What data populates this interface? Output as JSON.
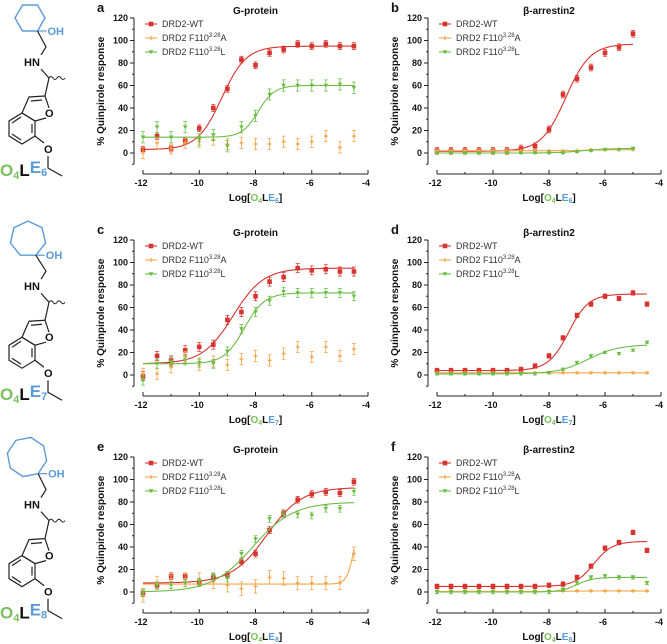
{
  "colors": {
    "wt": "#d8342f",
    "ala": "#f3a64a",
    "leu": "#6cbd45",
    "green_text": "#7cbf5c",
    "blue_text": "#5b9bd5",
    "ring": "#5b9bd5"
  },
  "legend": [
    {
      "key": "wt",
      "label": "DRD2-WT",
      "sup": "",
      "suffix": ""
    },
    {
      "key": "ala",
      "label": "DRD2 F110",
      "sup": "3.28",
      "suffix": "A"
    },
    {
      "key": "leu",
      "label": "DRD2 F110",
      "sup": "3.28",
      "suffix": "L"
    }
  ],
  "compounds": [
    {
      "ring": "cyclohexyl",
      "o": "O",
      "o_sub": "4",
      "l": "L",
      "e": "E",
      "e_sub": "6"
    },
    {
      "ring": "cycloheptyl",
      "o": "O",
      "o_sub": "4",
      "l": "L",
      "e": "E",
      "e_sub": "7"
    },
    {
      "ring": "cyclooctyl",
      "o": "O",
      "o_sub": "4",
      "l": "L",
      "e": "E",
      "e_sub": "8"
    }
  ],
  "atoms": {
    "oh": "OH",
    "hn": "HN",
    "o_furan": "O",
    "o_ether": "O"
  },
  "chart_data": [
    {
      "type": "scatter",
      "letter": "a",
      "title": "G-protein",
      "ylabel": "% Quinpirole response",
      "xlabel": {
        "prefix": "Log[",
        "o": "O",
        "o_sub": "4",
        "l": "L",
        "e": "E",
        "e_sub": "6",
        "suffix": "]"
      },
      "xlim": [
        -12,
        -4
      ],
      "ylim": [
        -10,
        120
      ],
      "xticks": [
        "-12",
        "-10",
        "-8",
        "-6",
        "-4"
      ],
      "yticks": [
        "0",
        "20",
        "40",
        "60",
        "80",
        "100",
        "120"
      ],
      "x": [
        -12,
        -11.5,
        -11,
        -10.5,
        -10,
        -9.5,
        -9,
        -8.5,
        -8,
        -7.5,
        -7,
        -6.5,
        -6,
        -5.5,
        -5,
        -4.5
      ],
      "series": [
        {
          "key": "wt",
          "name": "DRD2-WT",
          "values": [
            3,
            15,
            4,
            11,
            22,
            40,
            57,
            83,
            78,
            89,
            92,
            97,
            95,
            97,
            95,
            95
          ],
          "err": 3,
          "fit": {
            "bottom": 3,
            "top": 95,
            "logEC50": -9.2,
            "hill": 1
          }
        },
        {
          "key": "ala",
          "name": "DRD2 F110 3.28 A",
          "values": [
            0,
            9,
            4,
            9,
            10,
            12,
            8,
            9,
            8,
            8,
            10,
            8,
            10,
            15,
            5,
            15
          ],
          "err": 5,
          "fit": null
        },
        {
          "key": "leu",
          "name": "DRD2 F110 3.28 L",
          "values": [
            14,
            23,
            14,
            23,
            12,
            16,
            6,
            23,
            33,
            52,
            60,
            60,
            60,
            60,
            61,
            58
          ],
          "err": 5,
          "fit": {
            "bottom": 14,
            "top": 60,
            "logEC50": -7.9,
            "hill": 1.5
          }
        }
      ]
    },
    {
      "type": "scatter",
      "letter": "b",
      "title": "β-arrestin2",
      "ylabel": "% Quinpirole response",
      "xlabel": {
        "prefix": "Log[",
        "o": "O",
        "o_sub": "4",
        "l": "L",
        "e": "E",
        "e_sub": "6",
        "suffix": "]"
      },
      "xlim": [
        -12,
        -4
      ],
      "ylim": [
        -10,
        120
      ],
      "xticks": [
        "-12",
        "-10",
        "-8",
        "-6",
        "-4"
      ],
      "yticks": [
        "0",
        "20",
        "40",
        "60",
        "80",
        "100",
        "120"
      ],
      "x": [
        -12,
        -11.5,
        -11,
        -10.5,
        -10,
        -9.5,
        -9,
        -8.5,
        -8,
        -7.5,
        -7,
        -6.5,
        -6,
        -5.5,
        -5
      ],
      "series": [
        {
          "key": "wt",
          "name": "DRD2-WT",
          "values": [
            2,
            2,
            2,
            2,
            2,
            2,
            4,
            6,
            21,
            52,
            66,
            76,
            89,
            94,
            106
          ],
          "err": 3,
          "fit": {
            "bottom": 1.5,
            "top": 97,
            "logEC50": -7.4,
            "hill": 1
          }
        },
        {
          "key": "ala",
          "name": "DRD2 F110 3.28 A",
          "values": [
            2,
            2,
            2,
            2,
            2,
            2,
            2,
            2,
            2,
            2,
            2,
            3,
            3,
            3,
            3
          ],
          "err": 0.5,
          "fit": {
            "bottom": 2,
            "top": 3,
            "logEC50": -6.5,
            "hill": 1
          }
        },
        {
          "key": "leu",
          "name": "DRD2 F110 3.28 L",
          "values": [
            0,
            0,
            0,
            0,
            0,
            0,
            0,
            0,
            0,
            0,
            1,
            2,
            3,
            3,
            4
          ],
          "err": 0.5,
          "fit": {
            "bottom": 0,
            "top": 4,
            "logEC50": -6.8,
            "hill": 1
          }
        }
      ]
    },
    {
      "type": "scatter",
      "letter": "c",
      "title": "G-protein",
      "ylabel": "% Quinpirole response",
      "xlabel": {
        "prefix": "Log[",
        "o": "O",
        "o_sub": "4",
        "l": "L",
        "e": "E",
        "e_sub": "7",
        "suffix": "]"
      },
      "xlim": [
        -12,
        -4
      ],
      "ylim": [
        -10,
        120
      ],
      "xticks": [
        "-12",
        "-10",
        "-8",
        "-6",
        "-4"
      ],
      "yticks": [
        "0",
        "20",
        "40",
        "60",
        "80",
        "100",
        "120"
      ],
      "x": [
        -12,
        -11.5,
        -11,
        -10.5,
        -10,
        -9.5,
        -9,
        -8.5,
        -8,
        -7.5,
        -7,
        -6.5,
        -6,
        -5.5,
        -5,
        -4.5
      ],
      "series": [
        {
          "key": "wt",
          "name": "DRD2-WT",
          "values": [
            -1,
            17,
            13,
            22,
            25,
            27,
            49,
            56,
            70,
            83,
            87,
            95,
            93,
            94,
            92,
            92
          ],
          "err": 4,
          "fit": {
            "bottom": 10,
            "top": 95,
            "logEC50": -8.8,
            "hill": 0.8
          }
        },
        {
          "key": "ala",
          "name": "DRD2 F110 3.28 A",
          "values": [
            1,
            1,
            7,
            16,
            9,
            12,
            9,
            14,
            17,
            13,
            19,
            25,
            16,
            25,
            17,
            23
          ],
          "err": 5,
          "fit": null
        },
        {
          "key": "leu",
          "name": "DRD2 F110 3.28 L",
          "values": [
            -5,
            10,
            12,
            13,
            11,
            10,
            21,
            41,
            56,
            66,
            74,
            73,
            73,
            73,
            73,
            70
          ],
          "err": 4,
          "fit": {
            "bottom": 10,
            "top": 73,
            "logEC50": -8.4,
            "hill": 1.2
          }
        }
      ]
    },
    {
      "type": "scatter",
      "letter": "d",
      "title": "β-arrestin2",
      "ylabel": "% Quinpirole response",
      "xlabel": {
        "prefix": "Log[",
        "o": "O",
        "o_sub": "4",
        "l": "L",
        "e": "E",
        "e_sub": "7",
        "suffix": "]"
      },
      "xlim": [
        -12,
        -4
      ],
      "ylim": [
        -10,
        120
      ],
      "xticks": [
        "-12",
        "-10",
        "-8",
        "-6",
        "-4"
      ],
      "yticks": [
        "0",
        "20",
        "40",
        "60",
        "80",
        "100",
        "120"
      ],
      "x": [
        -12,
        -11.5,
        -11,
        -10.5,
        -10,
        -9.5,
        -9,
        -8.5,
        -8,
        -7.5,
        -7,
        -6.5,
        -6,
        -5.5,
        -5,
        -4.5
      ],
      "series": [
        {
          "key": "wt",
          "name": "DRD2-WT",
          "values": [
            4,
            4,
            4,
            4,
            4,
            4,
            5,
            8,
            17,
            33,
            53,
            63,
            70,
            68,
            73,
            63
          ],
          "err": 2,
          "fit": {
            "bottom": 4,
            "top": 72,
            "logEC50": -7.3,
            "hill": 1.2
          }
        },
        {
          "key": "ala",
          "name": "DRD2 F110 3.28 A",
          "values": [
            2,
            2,
            2,
            2,
            2,
            2,
            2,
            2,
            2,
            2,
            2,
            2,
            2,
            2,
            2,
            2
          ],
          "err": 0.5,
          "fit": {
            "bottom": 2,
            "top": 2,
            "logEC50": -7,
            "hill": 1
          }
        },
        {
          "key": "leu",
          "name": "DRD2 F110 3.28 L",
          "values": [
            1,
            1,
            1,
            1,
            1,
            1,
            1,
            1,
            2,
            5,
            11,
            17,
            20,
            19,
            22,
            29
          ],
          "err": 1,
          "fit": {
            "bottom": 1,
            "top": 27,
            "logEC50": -6.6,
            "hill": 0.8
          }
        }
      ]
    },
    {
      "type": "scatter",
      "letter": "e",
      "title": "G-protein",
      "ylabel": "% Quinpirole response",
      "xlabel": {
        "prefix": "Log[",
        "o": "O",
        "o_sub": "4",
        "l": "L",
        "e": "E",
        "e_sub": "8",
        "suffix": "]"
      },
      "xlim": [
        -12,
        -4
      ],
      "ylim": [
        -10,
        120
      ],
      "xticks": [
        "-12",
        "-10",
        "-8",
        "-6",
        "-4"
      ],
      "yticks": [
        "0",
        "20",
        "40",
        "60",
        "80",
        "100",
        "120"
      ],
      "x": [
        -12,
        -11.5,
        -11,
        -10.5,
        -10,
        -9.5,
        -9,
        -8.5,
        -8,
        -7.5,
        -7,
        -6.5,
        -6,
        -5.5,
        -5,
        -4.5
      ],
      "series": [
        {
          "key": "wt",
          "name": "DRD2-WT",
          "values": [
            -1,
            6,
            14,
            14,
            8,
            13,
            15,
            27,
            34,
            55,
            70,
            82,
            87,
            89,
            88,
            98
          ],
          "err": 3,
          "fit": {
            "bottom": 8,
            "top": 93,
            "logEC50": -7.6,
            "hill": 0.7
          }
        },
        {
          "key": "ala",
          "name": "DRD2 F110 3.28 A",
          "values": [
            -3,
            8,
            9,
            11,
            11,
            9,
            6,
            3,
            5,
            13,
            12,
            8,
            8,
            8,
            8,
            34
          ],
          "err": 6,
          "fit": {
            "bottom": 7,
            "top": 100,
            "logEC50": -4.4,
            "hill": 3
          }
        },
        {
          "key": "leu",
          "name": "DRD2 F110 3.28 L",
          "values": [
            -1,
            6,
            6,
            8,
            9,
            14,
            12,
            34,
            47,
            65,
            69,
            69,
            68,
            74,
            74,
            89
          ],
          "err": 3,
          "fit": {
            "bottom": 0,
            "top": 80,
            "logEC50": -8.1,
            "hill": 0.6
          }
        }
      ]
    },
    {
      "type": "scatter",
      "letter": "f",
      "title": "β-arrestin2",
      "ylabel": "% Quinpirole response",
      "xlabel": {
        "prefix": "Log[",
        "o": "O",
        "o_sub": "4",
        "l": "L",
        "e": "E",
        "e_sub": "8",
        "suffix": "]"
      },
      "xlim": [
        -12,
        -4
      ],
      "ylim": [
        -10,
        120
      ],
      "xticks": [
        "-12",
        "-10",
        "-8",
        "-6",
        "-4"
      ],
      "yticks": [
        "0",
        "20",
        "40",
        "60",
        "80",
        "100",
        "120"
      ],
      "x": [
        -12,
        -11.5,
        -11,
        -10.5,
        -10,
        -9.5,
        -9,
        -8.5,
        -8,
        -7.5,
        -7,
        -6.5,
        -6,
        -5.5,
        -5,
        -4.5
      ],
      "series": [
        {
          "key": "wt",
          "name": "DRD2-WT",
          "values": [
            5,
            5,
            5,
            5,
            5,
            5,
            5,
            5,
            6,
            7,
            13,
            23,
            39,
            44,
            53,
            37
          ],
          "err": 2,
          "fit": {
            "bottom": 5,
            "top": 45,
            "logEC50": -6.4,
            "hill": 1.3
          }
        },
        {
          "key": "ala",
          "name": "DRD2 F110 3.28 A",
          "values": [
            1,
            1,
            1,
            1,
            1,
            1,
            1,
            1,
            1,
            1,
            1,
            1,
            1,
            1,
            1,
            1
          ],
          "err": 0.5,
          "fit": {
            "bottom": 0.5,
            "top": 1,
            "logEC50": -7,
            "hill": 1
          }
        },
        {
          "key": "leu",
          "name": "DRD2 F110 3.28 L",
          "values": [
            0,
            0,
            0,
            0,
            0,
            0,
            0,
            0,
            0,
            2,
            8,
            13,
            14,
            13,
            13,
            8
          ],
          "err": 1.5,
          "fit": {
            "bottom": 0,
            "top": 13,
            "logEC50": -7.0,
            "hill": 1.5
          }
        }
      ]
    }
  ]
}
